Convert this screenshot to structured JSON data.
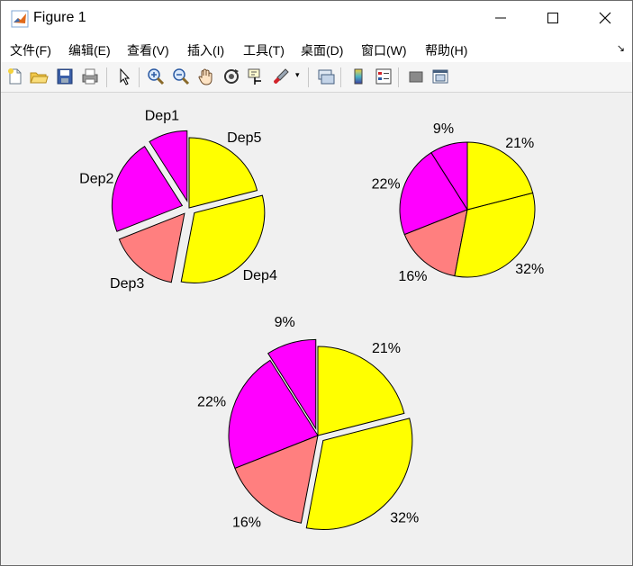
{
  "window": {
    "title": "Figure 1"
  },
  "menu": {
    "items": [
      "文件(F)",
      "编辑(E)",
      "查看(V)",
      "插入(I)",
      "工具(T)",
      "桌面(D)",
      "窗口(W)",
      "帮助(H)"
    ]
  },
  "toolbar": {
    "icons": [
      "new-figure-icon",
      "open-icon",
      "save-icon",
      "print-icon",
      "pointer-icon",
      "zoom-in-icon",
      "zoom-out-icon",
      "pan-icon",
      "rotate-icon",
      "data-cursor-icon",
      "brush-icon",
      "brush-dropdown-icon",
      "link-plot-icon",
      "colorbar-icon",
      "legend-icon",
      "hide-plot-tools-icon",
      "show-plot-tools-icon"
    ]
  },
  "colors": {
    "yellow": "#ffff00",
    "magenta": "#ff00ff",
    "salmon": "#ff7f7f",
    "edge": "#000000"
  },
  "chart_data": [
    {
      "type": "pie",
      "labels": [
        "Dep1",
        "Dep2",
        "Dep3",
        "Dep4",
        "Dep5"
      ],
      "values": [
        9,
        22,
        16,
        32,
        21
      ],
      "colors": [
        "#ff00ff",
        "#ff00ff",
        "#ff7f7f",
        "#ffff00",
        "#ffff00"
      ],
      "explode": [
        true,
        true,
        true,
        true,
        false
      ]
    },
    {
      "type": "pie",
      "labels": [
        "9%",
        "22%",
        "16%",
        "32%",
        "21%"
      ],
      "values": [
        9,
        22,
        16,
        32,
        21
      ],
      "colors": [
        "#ff00ff",
        "#ff00ff",
        "#ff7f7f",
        "#ffff00",
        "#ffff00"
      ],
      "explode": [
        false,
        false,
        false,
        false,
        false
      ]
    },
    {
      "type": "pie",
      "labels": [
        "9%",
        "22%",
        "16%",
        "32%",
        "21%"
      ],
      "values": [
        9,
        22,
        16,
        32,
        21
      ],
      "colors": [
        "#ff00ff",
        "#ff00ff",
        "#ff7f7f",
        "#ffff00",
        "#ffff00"
      ],
      "explode": [
        true,
        false,
        false,
        true,
        false
      ]
    }
  ]
}
